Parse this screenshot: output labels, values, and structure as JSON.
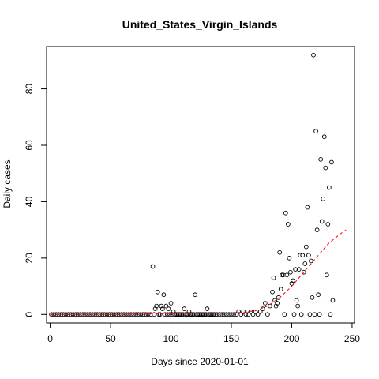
{
  "chart_data": {
    "type": "scatter",
    "title": "United_States_Virgin_Islands",
    "xlabel": "Days since 2020-01-01",
    "ylabel": "Daily cases",
    "xlim": [
      -3,
      252
    ],
    "ylim": [
      -3,
      95
    ],
    "xticks": [
      0,
      50,
      100,
      150,
      200,
      250
    ],
    "yticks": [
      0,
      20,
      40,
      60,
      80
    ],
    "grid": false,
    "legend": "none",
    "point_color": "#000000",
    "trend_color": "#ff0000",
    "series": [
      {
        "points": [
          [
            1,
            0
          ],
          [
            3,
            0
          ],
          [
            5,
            0
          ],
          [
            7,
            0
          ],
          [
            9,
            0
          ],
          [
            11,
            0
          ],
          [
            13,
            0
          ],
          [
            15,
            0
          ],
          [
            17,
            0
          ],
          [
            19,
            0
          ],
          [
            21,
            0
          ],
          [
            23,
            0
          ],
          [
            25,
            0
          ],
          [
            27,
            0
          ],
          [
            29,
            0
          ],
          [
            31,
            0
          ],
          [
            33,
            0
          ],
          [
            35,
            0
          ],
          [
            37,
            0
          ],
          [
            39,
            0
          ],
          [
            41,
            0
          ],
          [
            43,
            0
          ],
          [
            45,
            0
          ],
          [
            47,
            0
          ],
          [
            49,
            0
          ],
          [
            51,
            0
          ],
          [
            53,
            0
          ],
          [
            55,
            0
          ],
          [
            57,
            0
          ],
          [
            59,
            0
          ],
          [
            61,
            0
          ],
          [
            63,
            0
          ],
          [
            65,
            0
          ],
          [
            67,
            0
          ],
          [
            69,
            0
          ],
          [
            71,
            0
          ],
          [
            73,
            0
          ],
          [
            75,
            0
          ],
          [
            77,
            0
          ],
          [
            79,
            0
          ],
          [
            81,
            0
          ],
          [
            83,
            0
          ],
          [
            85,
            17
          ],
          [
            86,
            0
          ],
          [
            87,
            2
          ],
          [
            88,
            3
          ],
          [
            89,
            8
          ],
          [
            90,
            0
          ],
          [
            91,
            0
          ],
          [
            92,
            3
          ],
          [
            93,
            2
          ],
          [
            94,
            7
          ],
          [
            95,
            0
          ],
          [
            96,
            3
          ],
          [
            97,
            0
          ],
          [
            98,
            2
          ],
          [
            99,
            0
          ],
          [
            100,
            4
          ],
          [
            101,
            0
          ],
          [
            102,
            1
          ],
          [
            103,
            0
          ],
          [
            104,
            0
          ],
          [
            105,
            0
          ],
          [
            106,
            0
          ],
          [
            107,
            0
          ],
          [
            108,
            0
          ],
          [
            109,
            0
          ],
          [
            110,
            0
          ],
          [
            111,
            2
          ],
          [
            112,
            0
          ],
          [
            113,
            0
          ],
          [
            114,
            0
          ],
          [
            115,
            1
          ],
          [
            116,
            0
          ],
          [
            117,
            0
          ],
          [
            118,
            0
          ],
          [
            119,
            0
          ],
          [
            120,
            7
          ],
          [
            121,
            0
          ],
          [
            122,
            0
          ],
          [
            123,
            0
          ],
          [
            124,
            0
          ],
          [
            125,
            0
          ],
          [
            126,
            0
          ],
          [
            127,
            0
          ],
          [
            128,
            0
          ],
          [
            129,
            0
          ],
          [
            130,
            2
          ],
          [
            131,
            0
          ],
          [
            132,
            0
          ],
          [
            133,
            0
          ],
          [
            134,
            0
          ],
          [
            135,
            0
          ],
          [
            136,
            0
          ],
          [
            138,
            0
          ],
          [
            140,
            0
          ],
          [
            142,
            0
          ],
          [
            144,
            0
          ],
          [
            146,
            0
          ],
          [
            148,
            0
          ],
          [
            150,
            0
          ],
          [
            152,
            0
          ],
          [
            154,
            0
          ],
          [
            156,
            1
          ],
          [
            158,
            0
          ],
          [
            160,
            1
          ],
          [
            162,
            0
          ],
          [
            164,
            0
          ],
          [
            166,
            1
          ],
          [
            168,
            0
          ],
          [
            170,
            1
          ],
          [
            172,
            0
          ],
          [
            174,
            1
          ],
          [
            176,
            2
          ],
          [
            178,
            4
          ],
          [
            180,
            0
          ],
          [
            182,
            3
          ],
          [
            184,
            8
          ],
          [
            185,
            13
          ],
          [
            186,
            5
          ],
          [
            187,
            3
          ],
          [
            188,
            4
          ],
          [
            189,
            6
          ],
          [
            190,
            22
          ],
          [
            191,
            9
          ],
          [
            192,
            14
          ],
          [
            193,
            14
          ],
          [
            194,
            0
          ],
          [
            195,
            36
          ],
          [
            196,
            14
          ],
          [
            197,
            32
          ],
          [
            198,
            20
          ],
          [
            199,
            15
          ],
          [
            200,
            11
          ],
          [
            201,
            12
          ],
          [
            202,
            0
          ],
          [
            203,
            16
          ],
          [
            204,
            5
          ],
          [
            205,
            3
          ],
          [
            206,
            16
          ],
          [
            207,
            21
          ],
          [
            208,
            0
          ],
          [
            209,
            21
          ],
          [
            210,
            15
          ],
          [
            211,
            18
          ],
          [
            212,
            24
          ],
          [
            213,
            38
          ],
          [
            214,
            21
          ],
          [
            215,
            0
          ],
          [
            216,
            19
          ],
          [
            217,
            6
          ],
          [
            218,
            92
          ],
          [
            219,
            0
          ],
          [
            220,
            65
          ],
          [
            221,
            30
          ],
          [
            222,
            7
          ],
          [
            223,
            0
          ],
          [
            224,
            55
          ],
          [
            225,
            33
          ],
          [
            226,
            41
          ],
          [
            227,
            63
          ],
          [
            228,
            52
          ],
          [
            229,
            14
          ],
          [
            230,
            32
          ],
          [
            231,
            45
          ],
          [
            232,
            0
          ],
          [
            233,
            54
          ],
          [
            234,
            5
          ]
        ]
      }
    ],
    "trend": {
      "style": "dashed",
      "points": [
        [
          0,
          0
        ],
        [
          50,
          0
        ],
        [
          100,
          0.3
        ],
        [
          150,
          0.5
        ],
        [
          160,
          0.8
        ],
        [
          170,
          1.3
        ],
        [
          180,
          3
        ],
        [
          190,
          6
        ],
        [
          200,
          10
        ],
        [
          210,
          15
        ],
        [
          220,
          20
        ],
        [
          230,
          25
        ],
        [
          240,
          28.5
        ],
        [
          245,
          30
        ]
      ]
    }
  }
}
